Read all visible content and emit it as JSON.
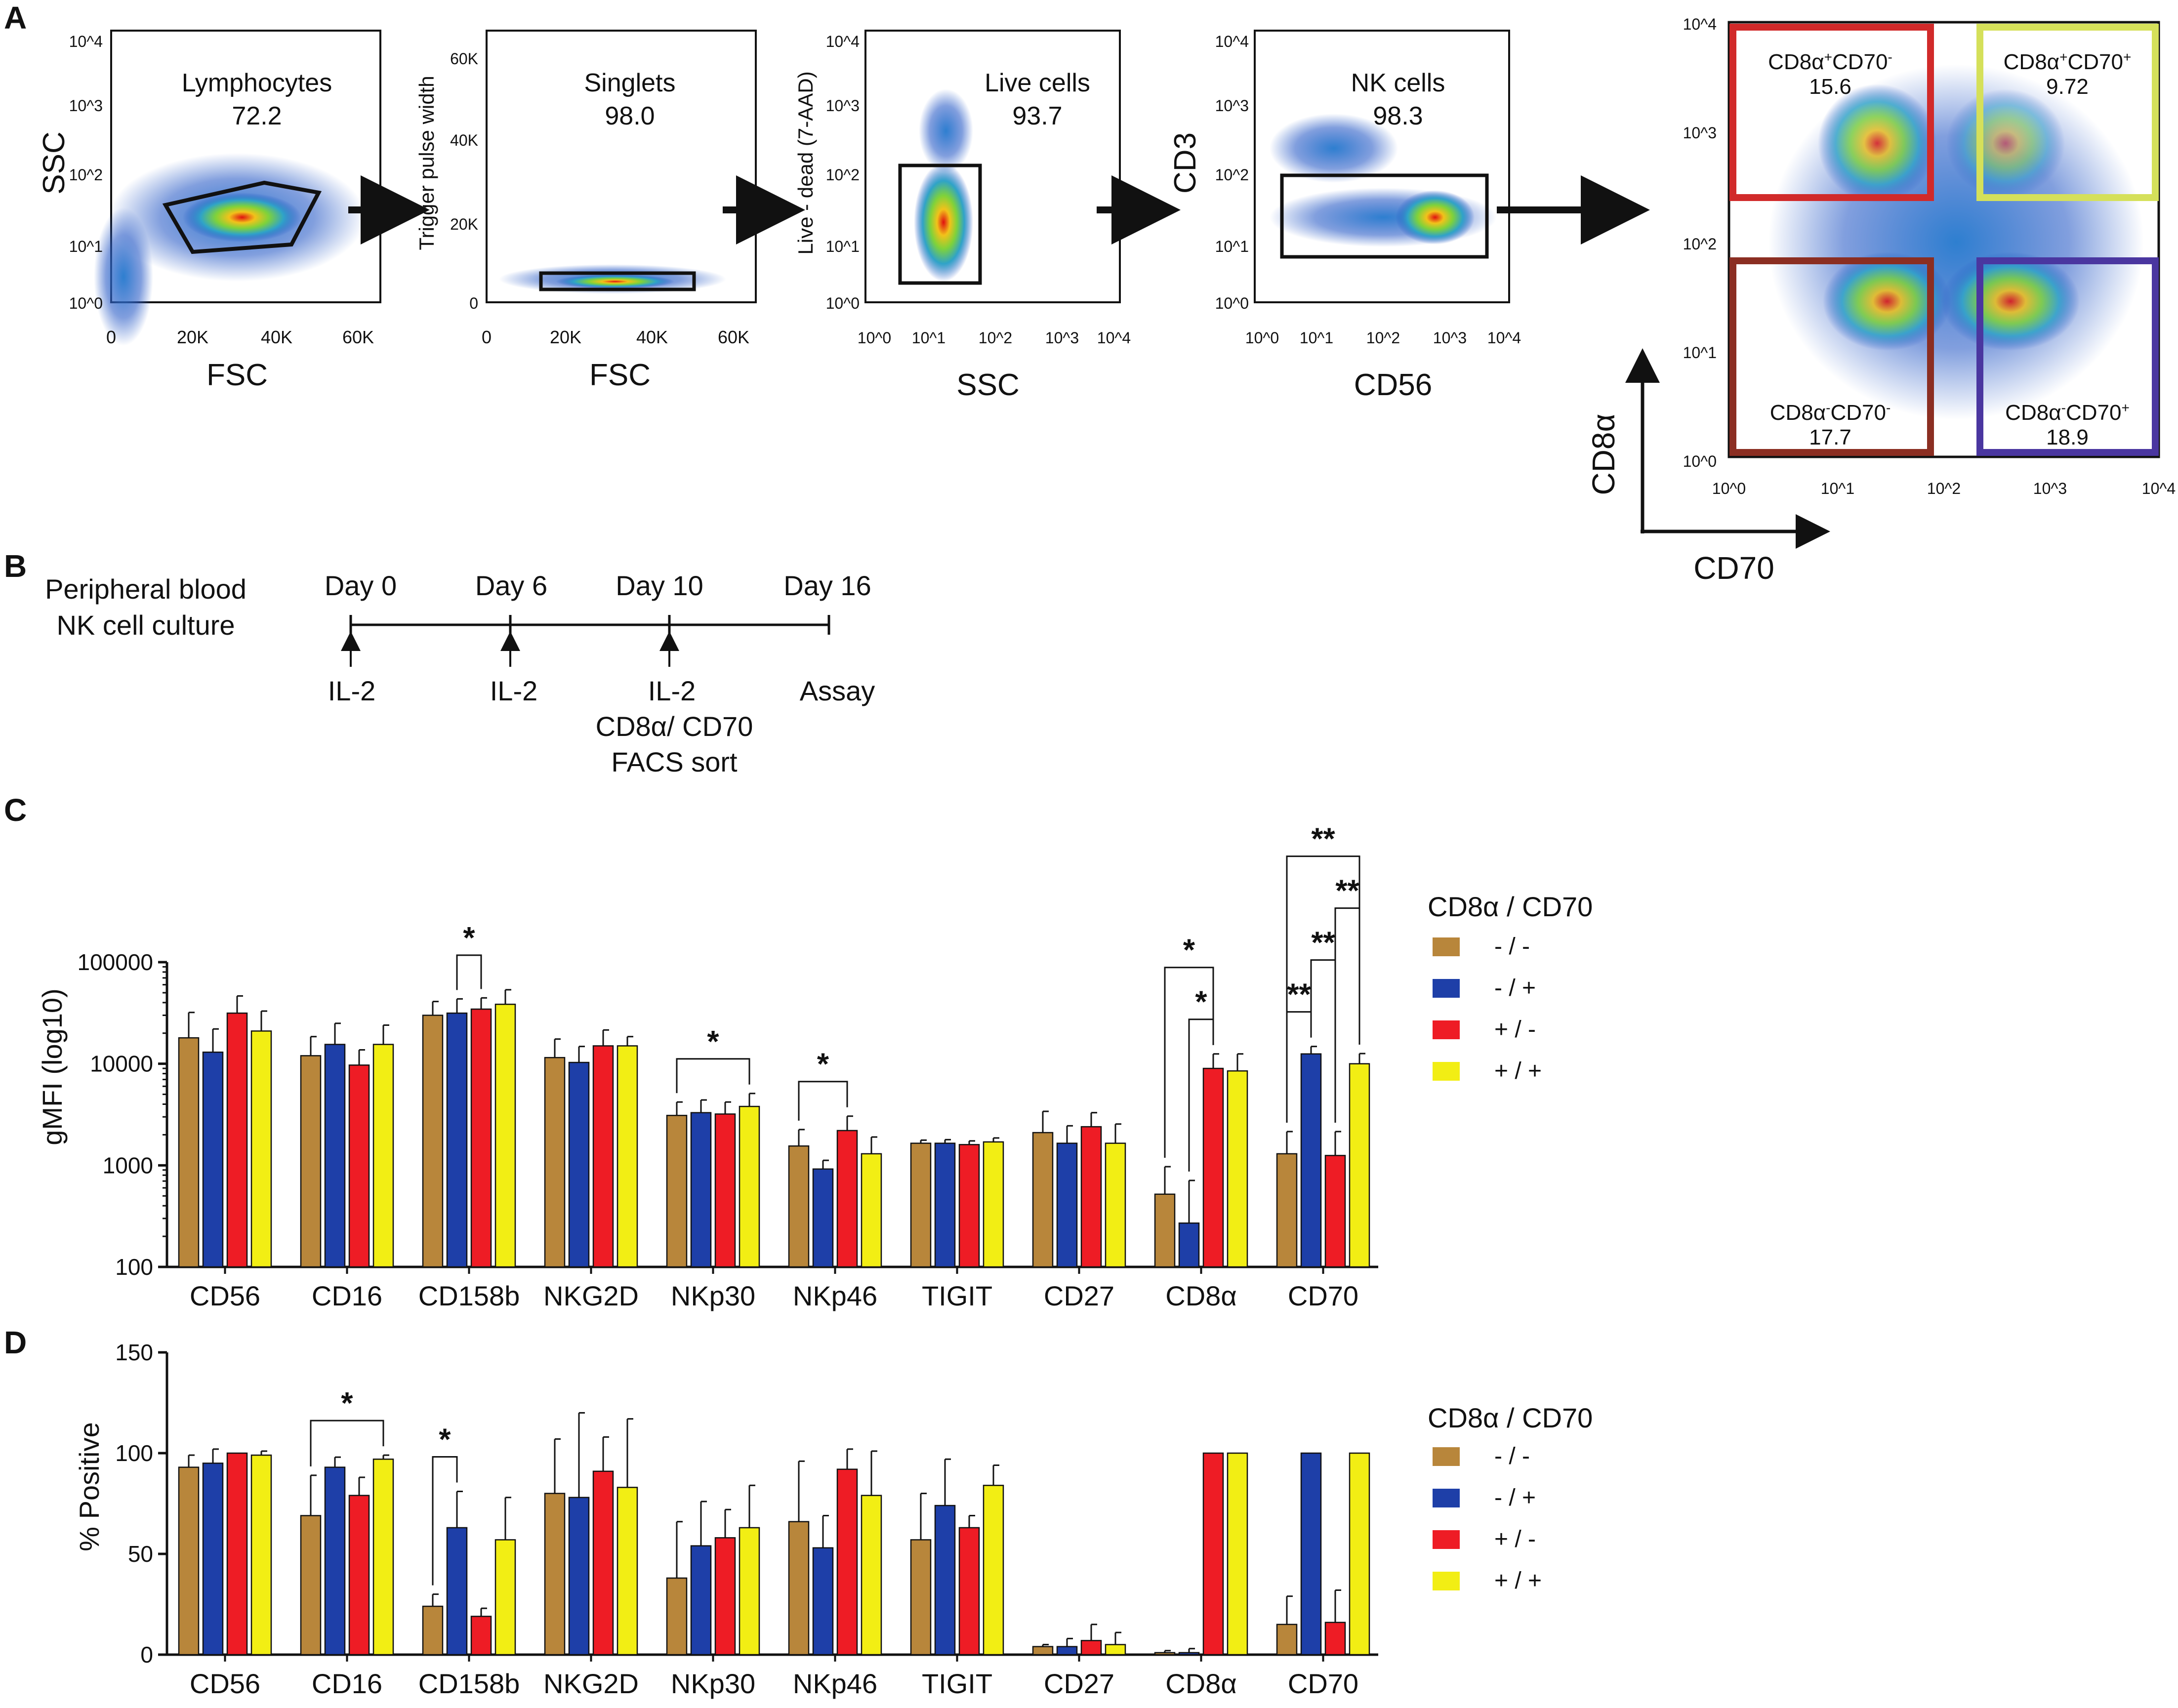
{
  "panels": {
    "A": "A",
    "B": "B",
    "C": "C",
    "D": "D"
  },
  "colors": {
    "nn": "#B8863B",
    "np": "#1E3FA8",
    "pn": "#EE1C25",
    "pp": "#F2EE14",
    "gate_cd8p_cd70n": "#D12A2A",
    "gate_cd8p_cd70p": "#D5E05A",
    "gate_cd8n_cd70n": "#8B2E22",
    "gate_cd8n_cd70p": "#4A36A0"
  },
  "flow": {
    "lymph": {
      "gate_name": "Lymphocytes",
      "gate_value": "72.2",
      "x_label": "FSC",
      "y_label": "SSC",
      "x_ticks": [
        "0",
        "20K",
        "40K",
        "60K"
      ],
      "y_ticks": [
        "10^0",
        "10^1",
        "10^2",
        "10^3",
        "10^4"
      ]
    },
    "singlets": {
      "gate_name": "Singlets",
      "gate_value": "98.0",
      "x_label": "FSC",
      "y_label": "Trigger pulse width",
      "x_ticks": [
        "0",
        "20K",
        "40K",
        "60K"
      ],
      "y_ticks": [
        "0",
        "20K",
        "40K",
        "60K"
      ]
    },
    "live": {
      "gate_name": "Live cells",
      "gate_value": "93.7",
      "x_label": "SSC",
      "y_label": "Live - dead (7-AAD)",
      "x_ticks": [
        "10^0",
        "10^1",
        "10^2",
        "10^3",
        "10^4"
      ],
      "y_ticks": [
        "10^0",
        "10^1",
        "10^2",
        "10^3",
        "10^4"
      ]
    },
    "nk": {
      "gate_name": "NK cells",
      "gate_value": "98.3",
      "x_label": "CD56",
      "y_label": "CD3",
      "x_ticks": [
        "10^0",
        "10^1",
        "10^2",
        "10^3",
        "10^4"
      ],
      "y_ticks": [
        "10^0",
        "10^1",
        "10^2",
        "10^3",
        "10^4"
      ]
    },
    "quad": {
      "x_label": "CD70",
      "y_label": "CD8α",
      "x_ticks": [
        "10^0",
        "10^1",
        "10^2",
        "10^3",
        "10^4"
      ],
      "y_ticks": [
        "10^0",
        "10^1",
        "10^2",
        "10^3",
        "10^4"
      ],
      "gates": [
        {
          "cd8": "+",
          "cd70": "-",
          "value": "15.6"
        },
        {
          "cd8": "+",
          "cd70": "+",
          "value": "9.72"
        },
        {
          "cd8": "-",
          "cd70": "-",
          "value": "17.7"
        },
        {
          "cd8": "-",
          "cd70": "+",
          "value": "18.9"
        }
      ]
    }
  },
  "timeline": {
    "label_line1": "Peripheral blood",
    "label_line2": "NK cell culture",
    "days": [
      "Day 0",
      "Day 6",
      "Day 10",
      "Day 16"
    ],
    "events": [
      "IL-2",
      "IL-2",
      "IL-2",
      "Assay"
    ],
    "sort_line1": "CD8α/ CD70",
    "sort_line2": "FACS sort"
  },
  "legend": {
    "title": "CD8α / CD70",
    "entries": [
      "- / -",
      "- / +",
      "+ / -",
      "+ / +"
    ]
  },
  "chart_data": [
    {
      "type": "bar",
      "panel": "C",
      "ylabel": "gMFI (log10)",
      "yscale": "log",
      "ylim": [
        100,
        100000
      ],
      "yticks": [
        "100",
        "1000",
        "10000",
        "100000"
      ],
      "categories": [
        "CD56",
        "CD16",
        "CD158b",
        "NKG2D",
        "NKp30",
        "NKp46",
        "TIGIT",
        "CD27",
        "CD8α",
        "CD70"
      ],
      "series": [
        {
          "name": "- / -",
          "values": [
            18000,
            12000,
            30000,
            11500,
            3100,
            1550,
            1650,
            2100,
            520,
            1300
          ],
          "errors": [
            14000,
            6500,
            11000,
            6000,
            1100,
            700,
            120,
            1300,
            450,
            850
          ]
        },
        {
          "name": "- / +",
          "values": [
            13000,
            15500,
            31500,
            10300,
            3300,
            920,
            1650,
            1650,
            270,
            12500
          ],
          "errors": [
            9000,
            9500,
            12000,
            4500,
            1100,
            200,
            140,
            800,
            440,
            2300
          ]
        },
        {
          "name": "+ / -",
          "values": [
            31500,
            9700,
            34500,
            15000,
            3200,
            2200,
            1600,
            2400,
            9000,
            1250
          ],
          "errors": [
            15000,
            4000,
            10000,
            6500,
            1000,
            850,
            140,
            900,
            3500,
            900
          ]
        },
        {
          "name": "+ / +",
          "values": [
            21000,
            15500,
            38500,
            15000,
            3800,
            1300,
            1700,
            1650,
            8500,
            10000
          ],
          "errors": [
            12000,
            8500,
            15000,
            3500,
            1300,
            600,
            160,
            900,
            4000,
            2600
          ]
        }
      ],
      "significance": [
        {
          "cat": 2,
          "from": 1,
          "to": 2,
          "label": "*",
          "level": 0
        },
        {
          "cat": 4,
          "from": 0,
          "to": 3,
          "label": "*",
          "level": 0
        },
        {
          "cat": 5,
          "from": 0,
          "to": 2,
          "label": "*",
          "level": 0
        },
        {
          "cat": 8,
          "from": 0,
          "to": 2,
          "label": "*",
          "level": 1
        },
        {
          "cat": 8,
          "from": 1,
          "to": 2,
          "label": "*",
          "level": 0
        },
        {
          "cat": 9,
          "from": 0,
          "to": 1,
          "label": "**",
          "level": 0
        },
        {
          "cat": 9,
          "from": 1,
          "to": 2,
          "label": "**",
          "level": 1
        },
        {
          "cat": 9,
          "from": 2,
          "to": 3,
          "label": "**",
          "level": 2
        },
        {
          "cat": 9,
          "from": 0,
          "to": 3,
          "label": "**",
          "level": 3
        }
      ]
    },
    {
      "type": "bar",
      "panel": "D",
      "ylabel": "% Positive",
      "ylim": [
        0,
        150
      ],
      "yticks": [
        "0",
        "50",
        "100",
        "150"
      ],
      "categories": [
        "CD56",
        "CD16",
        "CD158b",
        "NKG2D",
        "NKp30",
        "NKp46",
        "TIGIT",
        "CD27",
        "CD8α",
        "CD70"
      ],
      "series": [
        {
          "name": "- / -",
          "values": [
            93,
            69,
            24,
            80,
            38,
            66,
            57,
            4,
            1,
            15
          ],
          "errors": [
            6,
            20,
            6,
            27,
            28,
            30,
            23,
            1,
            1,
            14
          ]
        },
        {
          "name": "- / +",
          "values": [
            95,
            93,
            63,
            78,
            54,
            53,
            74,
            4,
            1,
            100
          ],
          "errors": [
            7,
            5,
            18,
            42,
            22,
            16,
            23,
            4,
            2,
            0
          ]
        },
        {
          "name": "+ / -",
          "values": [
            100,
            79,
            19,
            91,
            58,
            92,
            63,
            7,
            100,
            16
          ],
          "errors": [
            0,
            9,
            4,
            17,
            14,
            10,
            6,
            8,
            0,
            16
          ]
        },
        {
          "name": "+ / +",
          "values": [
            99,
            97,
            57,
            83,
            63,
            79,
            84,
            5,
            100,
            100
          ],
          "errors": [
            2,
            2,
            21,
            34,
            21,
            22,
            10,
            6,
            0,
            0
          ]
        }
      ],
      "significance": [
        {
          "cat": 1,
          "from": 0,
          "to": 3,
          "label": "*",
          "level": 0
        },
        {
          "cat": 2,
          "from": 0,
          "to": 1,
          "label": "*",
          "level": 0
        }
      ]
    }
  ]
}
